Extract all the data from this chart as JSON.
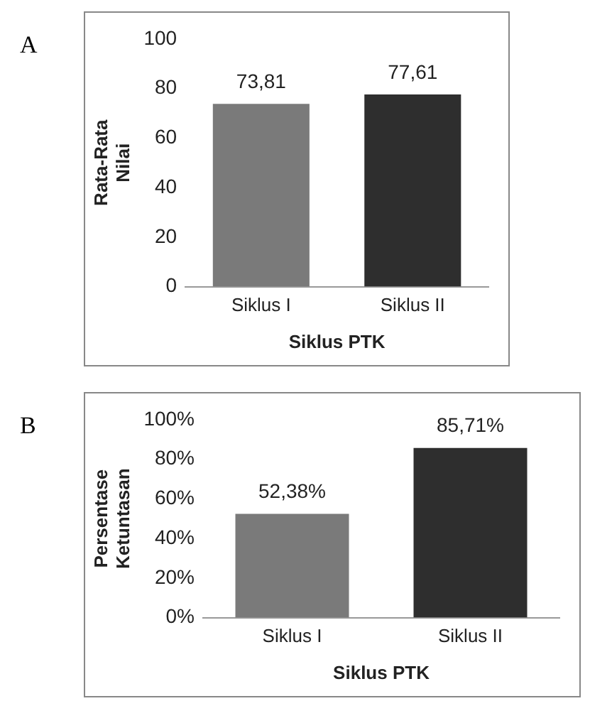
{
  "chart_data": [
    {
      "type": "bar",
      "title": "A",
      "xlabel": "Siklus PTK",
      "ylabel": "Rata-Rata Nilai",
      "categories": [
        "Siklus I",
        "Siklus II"
      ],
      "values": [
        73.81,
        77.61
      ],
      "colors": [
        "#7a7a7a",
        "#2e2e2e"
      ],
      "value_labels": [
        "73,81",
        "77,61"
      ],
      "ylim": [
        0,
        100
      ],
      "yticks": [
        0,
        20,
        40,
        60,
        80,
        100
      ],
      "grid": false,
      "legend": false
    },
    {
      "type": "bar",
      "title": "B",
      "xlabel": "Siklus PTK",
      "ylabel": "Persentase Ketuntasan",
      "categories": [
        "Siklus I",
        "Siklus II"
      ],
      "values": [
        52.38,
        85.71
      ],
      "colors": [
        "#7a7a7a",
        "#2e2e2e"
      ],
      "value_labels": [
        "52,38%",
        "85,71%"
      ],
      "ylim": [
        0,
        100
      ],
      "yticks": [
        {
          "value": 0,
          "label": "0%"
        },
        {
          "value": 20,
          "label": "20%"
        },
        {
          "value": 40,
          "label": "40%"
        },
        {
          "value": 60,
          "label": "60%"
        },
        {
          "value": 80,
          "label": "80%"
        },
        {
          "value": 100,
          "label": "100%"
        }
      ],
      "grid": false,
      "legend": false
    }
  ]
}
